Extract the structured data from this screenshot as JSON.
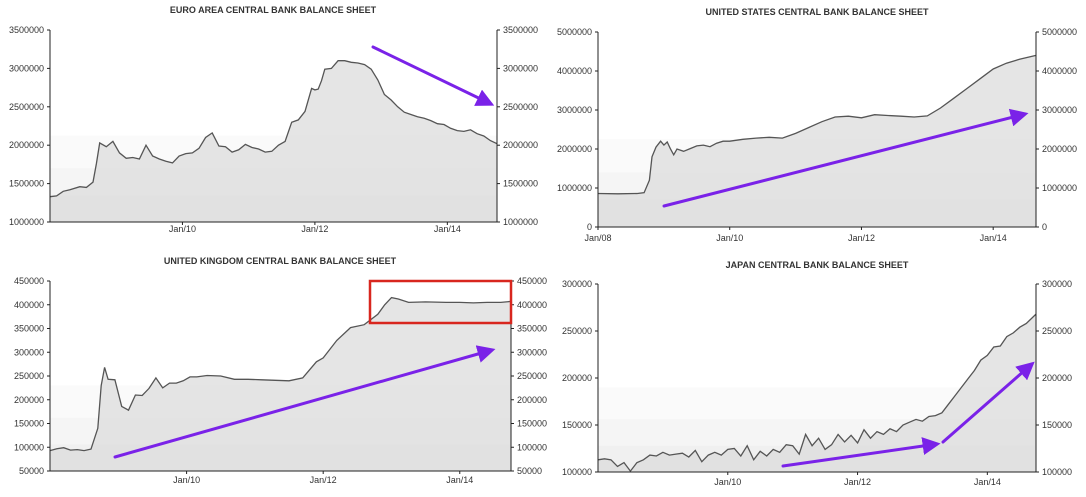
{
  "chart_data": [
    {
      "type": "area",
      "title": "EURO AREA CENTRAL BANK BALANCE SHEET",
      "xlabel": "",
      "ylabel": "",
      "x_range": [
        2008.0,
        2014.75
      ],
      "ylim": [
        1000000,
        3500000
      ],
      "y_ticks": [
        "1000000",
        "1500000",
        "2000000",
        "2500000",
        "3000000",
        "3500000"
      ],
      "x_ticks": [
        {
          "label": "Jan/10",
          "value": 2010.0
        },
        {
          "label": "Jan/12",
          "value": 2012.0
        },
        {
          "label": "Jan/14",
          "value": 2014.0
        }
      ],
      "axes": "left and right",
      "grid": false,
      "series": [
        {
          "x": [
            2008.0,
            2008.1,
            2008.2,
            2008.3,
            2008.45,
            2008.55,
            2008.65,
            2008.7,
            2008.75,
            2008.85,
            2008.95,
            2009.05,
            2009.15,
            2009.25,
            2009.35,
            2009.45,
            2009.55,
            2009.65,
            2009.75,
            2009.85,
            2009.95,
            2010.05,
            2010.15,
            2010.25,
            2010.35,
            2010.45,
            2010.55,
            2010.65,
            2010.75,
            2010.85,
            2010.95,
            2011.05,
            2011.15,
            2011.25,
            2011.35,
            2011.45,
            2011.55,
            2011.65,
            2011.75,
            2011.85,
            2011.95,
            2012.0,
            2012.05,
            2012.1,
            2012.15,
            2012.25,
            2012.35,
            2012.45,
            2012.55,
            2012.65,
            2012.75,
            2012.85,
            2012.95,
            2013.05,
            2013.15,
            2013.25,
            2013.35,
            2013.45,
            2013.55,
            2013.65,
            2013.75,
            2013.85,
            2013.95,
            2014.05,
            2014.15,
            2014.25,
            2014.35,
            2014.45,
            2014.55,
            2014.65,
            2014.75
          ],
          "y": [
            1330000,
            1340000,
            1400000,
            1420000,
            1460000,
            1450000,
            1520000,
            1760000,
            2030000,
            1980000,
            2050000,
            1900000,
            1830000,
            1840000,
            1820000,
            2000000,
            1860000,
            1820000,
            1790000,
            1770000,
            1860000,
            1890000,
            1900000,
            1960000,
            2100000,
            2160000,
            1990000,
            1980000,
            1910000,
            1940000,
            2010000,
            1970000,
            1950000,
            1910000,
            1920000,
            2000000,
            2050000,
            2300000,
            2330000,
            2440000,
            2740000,
            2720000,
            2730000,
            2840000,
            2990000,
            3000000,
            3100000,
            3100000,
            3080000,
            3070000,
            3050000,
            2990000,
            2850000,
            2660000,
            2590000,
            2500000,
            2430000,
            2400000,
            2370000,
            2350000,
            2320000,
            2280000,
            2270000,
            2220000,
            2190000,
            2180000,
            2200000,
            2150000,
            2120000,
            2060000,
            2020000
          ]
        }
      ],
      "annotations": [
        {
          "type": "arrow",
          "color": "#7a22e8",
          "direction": "down"
        }
      ]
    },
    {
      "type": "area",
      "title": "UNITED STATES CENTRAL BANK BALANCE SHEET",
      "xlabel": "",
      "ylabel": "",
      "x_range": [
        2008.0,
        2014.65
      ],
      "ylim": [
        0,
        5000000
      ],
      "y_ticks": [
        "0",
        "1000000",
        "2000000",
        "3000000",
        "4000000",
        "5000000"
      ],
      "x_ticks": [
        {
          "label": "Jan/08",
          "value": 2008.0
        },
        {
          "label": "Jan/10",
          "value": 2010.0
        },
        {
          "label": "Jan/12",
          "value": 2012.0
        },
        {
          "label": "Jan/14",
          "value": 2014.0
        }
      ],
      "axes": "left and right",
      "grid": false,
      "series": [
        {
          "x": [
            2008.0,
            2008.3,
            2008.6,
            2008.7,
            2008.78,
            2008.82,
            2008.88,
            2008.95,
            2009.0,
            2009.05,
            2009.1,
            2009.15,
            2009.2,
            2009.3,
            2009.4,
            2009.5,
            2009.6,
            2009.7,
            2009.8,
            2009.9,
            2010.0,
            2010.2,
            2010.4,
            2010.6,
            2010.8,
            2011.0,
            2011.2,
            2011.4,
            2011.6,
            2011.8,
            2012.0,
            2012.2,
            2012.4,
            2012.6,
            2012.8,
            2013.0,
            2013.2,
            2013.4,
            2013.6,
            2013.8,
            2014.0,
            2014.2,
            2014.4,
            2014.65
          ],
          "y": [
            860000,
            850000,
            860000,
            880000,
            1200000,
            1800000,
            2050000,
            2200000,
            2100000,
            2180000,
            2000000,
            1850000,
            2000000,
            1940000,
            2010000,
            2080000,
            2100000,
            2060000,
            2150000,
            2200000,
            2200000,
            2250000,
            2280000,
            2300000,
            2280000,
            2400000,
            2550000,
            2700000,
            2820000,
            2840000,
            2800000,
            2880000,
            2860000,
            2840000,
            2820000,
            2850000,
            3050000,
            3300000,
            3550000,
            3800000,
            4050000,
            4200000,
            4300000,
            4400000
          ]
        }
      ],
      "annotations": [
        {
          "type": "arrow",
          "color": "#7a22e8",
          "direction": "up"
        }
      ]
    },
    {
      "type": "area",
      "title": "UNITED KINGDOM CENTRAL BANK BALANCE SHEET",
      "xlabel": "",
      "ylabel": "",
      "x_range": [
        2008.0,
        2014.75
      ],
      "ylim": [
        50000,
        450000
      ],
      "y_ticks": [
        "50000",
        "100000",
        "150000",
        "200000",
        "250000",
        "300000",
        "350000",
        "400000",
        "450000"
      ],
      "x_ticks": [
        {
          "label": "Jan/10",
          "value": 2010.0
        },
        {
          "label": "Jan/12",
          "value": 2012.0
        },
        {
          "label": "Jan/14",
          "value": 2014.0
        }
      ],
      "axes": "left and right",
      "grid": false,
      "series": [
        {
          "x": [
            2008.0,
            2008.1,
            2008.2,
            2008.3,
            2008.4,
            2008.5,
            2008.6,
            2008.7,
            2008.75,
            2008.8,
            2008.85,
            2008.95,
            2009.05,
            2009.15,
            2009.25,
            2009.35,
            2009.45,
            2009.55,
            2009.65,
            2009.75,
            2009.85,
            2009.95,
            2010.05,
            2010.15,
            2010.3,
            2010.5,
            2010.7,
            2010.9,
            2011.1,
            2011.3,
            2011.5,
            2011.7,
            2011.9,
            2012.0,
            2012.2,
            2012.4,
            2012.6,
            2012.8,
            2012.9,
            2013.0,
            2013.1,
            2013.25,
            2013.5,
            2013.8,
            2014.0,
            2014.2,
            2014.4,
            2014.6,
            2014.75
          ],
          "y": [
            93000,
            97000,
            99000,
            94000,
            95000,
            93000,
            96000,
            140000,
            230000,
            268000,
            243000,
            242000,
            186000,
            178000,
            210000,
            209000,
            224000,
            246000,
            225000,
            235000,
            235000,
            240000,
            248000,
            248000,
            251000,
            250000,
            243000,
            243000,
            242000,
            241000,
            240000,
            246000,
            280000,
            288000,
            325000,
            352000,
            358000,
            380000,
            400000,
            415000,
            412000,
            405000,
            406000,
            405000,
            405000,
            404000,
            405000,
            405000,
            407000
          ]
        }
      ],
      "annotations": [
        {
          "type": "arrow",
          "color": "#7a22e8",
          "direction": "up"
        },
        {
          "type": "highlight-box",
          "color": "#d8261e"
        }
      ]
    },
    {
      "type": "area",
      "title": "JAPAN CENTRAL BANK BALANCE SHEET",
      "xlabel": "",
      "ylabel": "",
      "x_range": [
        2008.0,
        2014.75
      ],
      "ylim": [
        100000,
        300000
      ],
      "y_ticks": [
        "100000",
        "150000",
        "200000",
        "250000",
        "300000"
      ],
      "x_ticks": [
        {
          "label": "Jan/10",
          "value": 2010.0
        },
        {
          "label": "Jan/12",
          "value": 2012.0
        },
        {
          "label": "Jan/14",
          "value": 2014.0
        }
      ],
      "axes": "left and right",
      "grid": false,
      "series": [
        {
          "x": [
            2008.0,
            2008.1,
            2008.2,
            2008.3,
            2008.4,
            2008.5,
            2008.6,
            2008.7,
            2008.8,
            2008.9,
            2009.0,
            2009.1,
            2009.2,
            2009.3,
            2009.4,
            2009.5,
            2009.6,
            2009.7,
            2009.8,
            2009.9,
            2010.0,
            2010.1,
            2010.2,
            2010.3,
            2010.4,
            2010.5,
            2010.6,
            2010.7,
            2010.8,
            2010.9,
            2011.0,
            2011.1,
            2011.2,
            2011.3,
            2011.4,
            2011.5,
            2011.6,
            2011.7,
            2011.8,
            2011.9,
            2012.0,
            2012.1,
            2012.2,
            2012.3,
            2012.4,
            2012.5,
            2012.6,
            2012.7,
            2012.8,
            2012.9,
            2013.0,
            2013.1,
            2013.2,
            2013.3,
            2013.4,
            2013.5,
            2013.6,
            2013.7,
            2013.8,
            2013.9,
            2014.0,
            2014.1,
            2014.2,
            2014.3,
            2014.4,
            2014.5,
            2014.6,
            2014.75
          ],
          "y": [
            113000,
            114000,
            113000,
            106000,
            110000,
            101000,
            110000,
            113000,
            118000,
            117000,
            121000,
            118000,
            119000,
            120000,
            116000,
            123000,
            111000,
            118000,
            121000,
            118000,
            124000,
            125000,
            117000,
            128000,
            113000,
            122000,
            117000,
            124000,
            121000,
            129000,
            128000,
            119000,
            140000,
            128000,
            136000,
            124000,
            129000,
            140000,
            132000,
            139000,
            131000,
            145000,
            136000,
            143000,
            140000,
            146000,
            143000,
            150000,
            153000,
            156000,
            154000,
            159000,
            160000,
            163000,
            172000,
            181000,
            190000,
            199000,
            208000,
            219000,
            224000,
            233000,
            234000,
            244000,
            248000,
            254000,
            258000,
            268000
          ]
        }
      ],
      "annotations": [
        {
          "type": "arrow",
          "color": "#7a22e8",
          "direction": "up"
        },
        {
          "type": "arrow",
          "color": "#7a22e8",
          "direction": "up"
        }
      ]
    }
  ]
}
